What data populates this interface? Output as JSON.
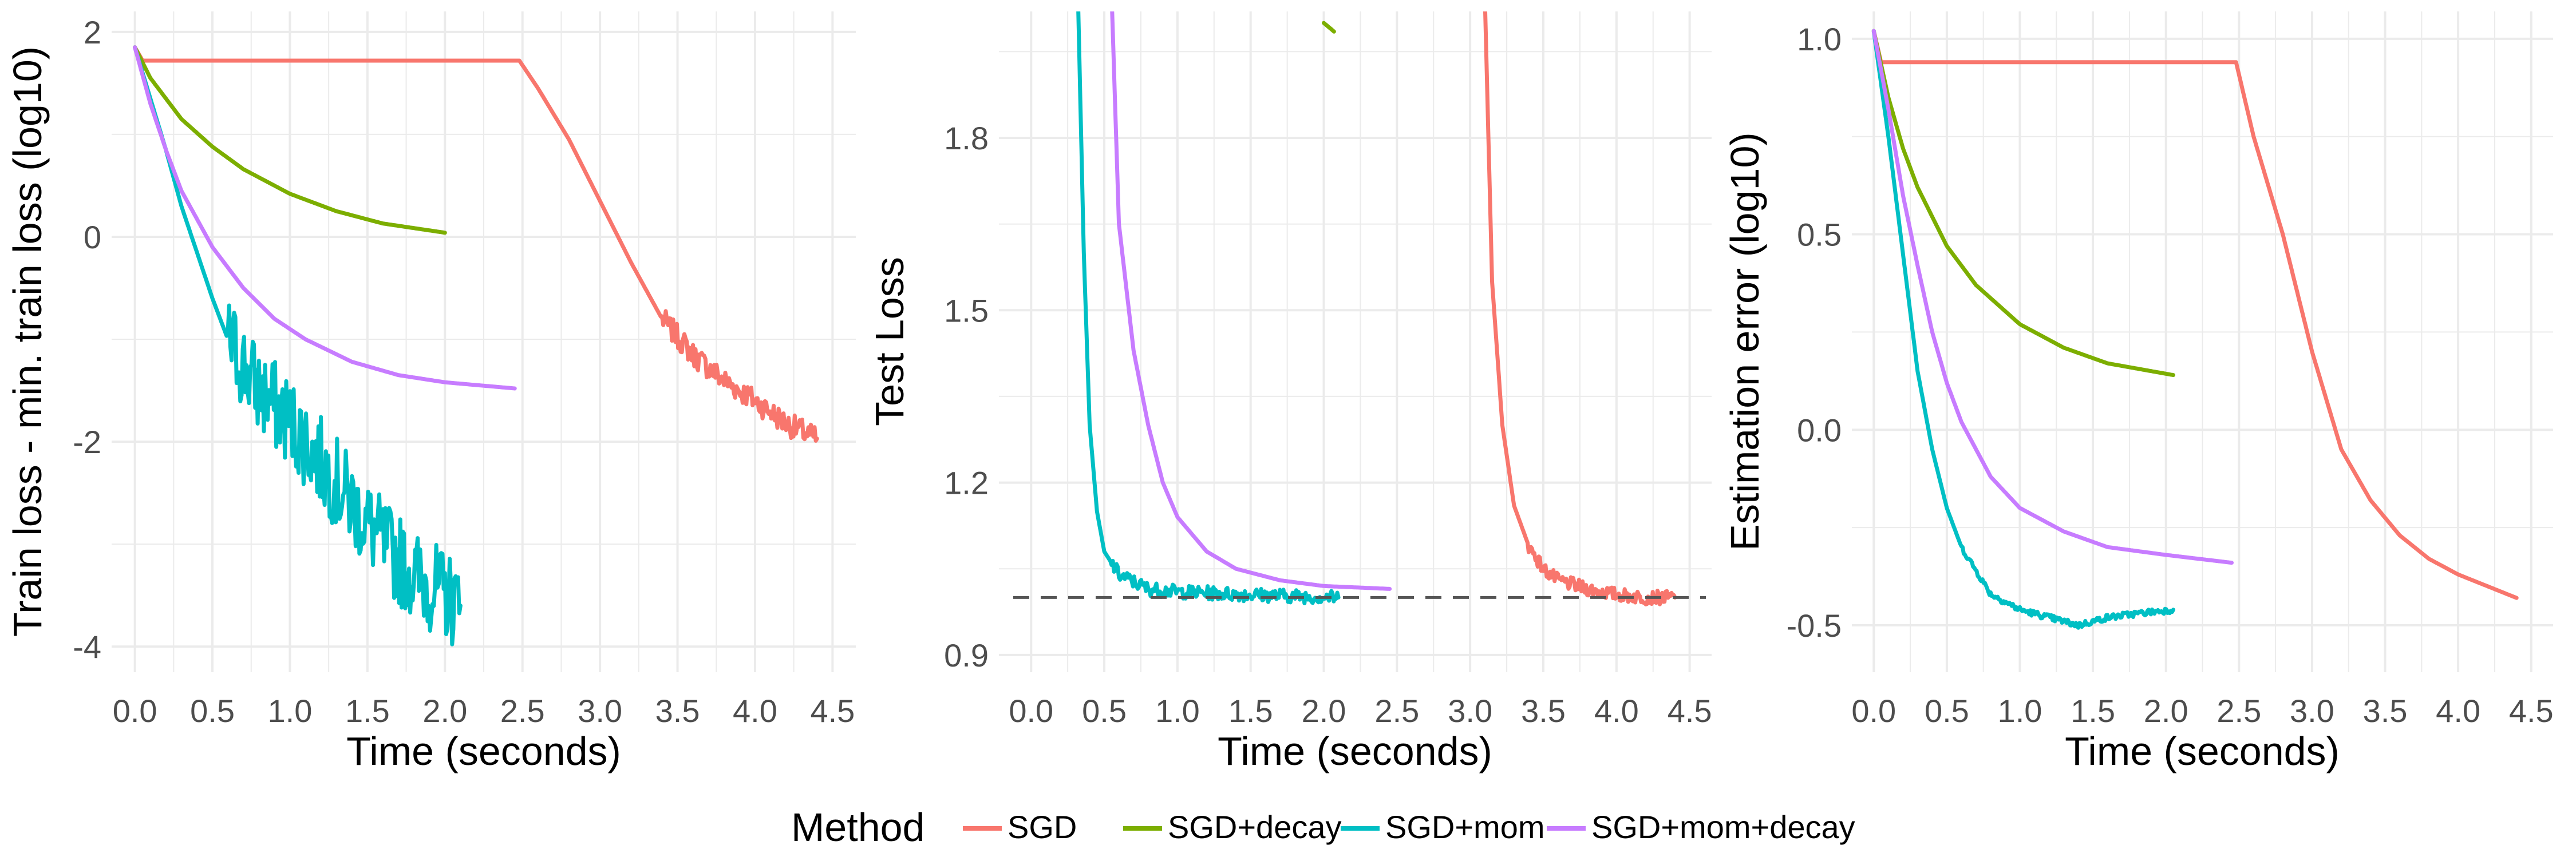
{
  "colors": {
    "SGD": "#F8766D",
    "SGD+decay": "#7CAE00",
    "SGD+mom": "#00BFC4",
    "SGD+mom+decay": "#C77CFF",
    "grid": "#EBEBEB",
    "reference_line": "#555555"
  },
  "legend": {
    "title": "Method",
    "entries": [
      "SGD",
      "SGD+decay",
      "SGD+mom",
      "SGD+mom+decay"
    ]
  },
  "chart_data": [
    {
      "type": "line",
      "xlabel": "Time (seconds)",
      "ylabel": "Train loss - min. train loss (log10)",
      "xlim": [
        -0.15,
        4.65
      ],
      "ylim": [
        -4.25,
        2.2
      ],
      "x_ticks": [
        0,
        0.5,
        1,
        1.5,
        2,
        2.5,
        3,
        3.5,
        4,
        4.5
      ],
      "x_tick_labels": [
        "0.0",
        "0.5",
        "1.0",
        "1.5",
        "2.0",
        "2.5",
        "3.0",
        "3.5",
        "4.0",
        "4.5"
      ],
      "y_ticks": [
        -4,
        -2,
        0,
        2
      ],
      "y_tick_labels": [
        "-4",
        "-2",
        "0",
        "2"
      ],
      "grid": true,
      "series": [
        {
          "name": "SGD",
          "noise": 0.12,
          "noise_from": 3.4,
          "x": [
            0,
            0.05,
            2.48,
            2.6,
            2.8,
            3.0,
            3.2,
            3.4,
            3.6,
            3.8,
            4.0,
            4.2,
            4.4
          ],
          "y": [
            1.85,
            1.72,
            1.72,
            1.45,
            0.95,
            0.35,
            -0.25,
            -0.8,
            -1.15,
            -1.4,
            -1.6,
            -1.82,
            -1.97
          ]
        },
        {
          "name": "SGD+decay",
          "x": [
            0,
            0.1,
            0.2,
            0.3,
            0.5,
            0.7,
            1.0,
            1.3,
            1.6,
            2.0
          ],
          "y": [
            1.85,
            1.55,
            1.35,
            1.15,
            0.88,
            0.66,
            0.42,
            0.25,
            0.13,
            0.04
          ]
        },
        {
          "name": "SGD+mom",
          "noise": 0.45,
          "noise_from": 0.6,
          "x": [
            0,
            0.1,
            0.2,
            0.3,
            0.4,
            0.5,
            0.6,
            0.8,
            1.0,
            1.2,
            1.4,
            1.6,
            1.8,
            2.0,
            2.1
          ],
          "y": [
            1.85,
            1.35,
            0.85,
            0.3,
            -0.15,
            -0.6,
            -1.0,
            -1.5,
            -1.8,
            -2.2,
            -2.6,
            -3.0,
            -3.3,
            -3.5,
            -3.6
          ]
        },
        {
          "name": "SGD+mom+decay",
          "x": [
            0,
            0.1,
            0.2,
            0.3,
            0.5,
            0.7,
            0.9,
            1.1,
            1.4,
            1.7,
            2.0,
            2.45
          ],
          "y": [
            1.85,
            1.3,
            0.85,
            0.45,
            -0.1,
            -0.5,
            -0.8,
            -1.0,
            -1.22,
            -1.35,
            -1.42,
            -1.48
          ]
        }
      ]
    },
    {
      "type": "line",
      "xlabel": "Time (seconds)",
      "ylabel": "Test Loss",
      "xlim": [
        -0.22,
        4.65
      ],
      "ylim": [
        0.87,
        2.02
      ],
      "x_ticks": [
        0,
        0.5,
        1,
        1.5,
        2,
        2.5,
        3,
        3.5,
        4,
        4.5
      ],
      "x_tick_labels": [
        "0.0",
        "0.5",
        "1.0",
        "1.5",
        "2.0",
        "2.5",
        "3.0",
        "3.5",
        "4.0",
        "4.5"
      ],
      "y_ticks": [
        0.9,
        1.2,
        1.5,
        1.8
      ],
      "y_tick_labels": [
        "0.9",
        "1.2",
        "1.5",
        "1.8"
      ],
      "grid": true,
      "reference_line": {
        "y": 1.0,
        "style": "dashed"
      },
      "series": [
        {
          "name": "SGD",
          "noise": 0.012,
          "noise_from": 3.4,
          "x": [
            3.1,
            3.15,
            3.22,
            3.3,
            3.4,
            3.5,
            3.6,
            3.8,
            4.0,
            4.2,
            4.4
          ],
          "y": [
            2.05,
            1.55,
            1.3,
            1.16,
            1.09,
            1.05,
            1.03,
            1.015,
            1.005,
            1.0,
            1.0
          ]
        },
        {
          "name": "SGD+decay",
          "x": [
            2.0,
            2.07
          ],
          "y": [
            2.0,
            1.985
          ]
        },
        {
          "name": "SGD+mom",
          "noise": 0.012,
          "noise_from": 0.55,
          "x": [
            0.32,
            0.36,
            0.4,
            0.45,
            0.5,
            0.6,
            0.8,
            1.0,
            1.5,
            2.1
          ],
          "y": [
            2.05,
            1.6,
            1.3,
            1.15,
            1.08,
            1.04,
            1.015,
            1.01,
            1.005,
            1.0
          ]
        },
        {
          "name": "SGD+mom+decay",
          "x": [
            0.55,
            0.6,
            0.7,
            0.8,
            0.9,
            1.0,
            1.2,
            1.4,
            1.7,
            2.0,
            2.45
          ],
          "y": [
            2.05,
            1.65,
            1.43,
            1.3,
            1.2,
            1.14,
            1.08,
            1.05,
            1.03,
            1.02,
            1.015
          ]
        }
      ]
    },
    {
      "type": "line",
      "xlabel": "Time (seconds)",
      "ylabel": "Estimation error (log10)",
      "xlim": [
        -0.15,
        4.65
      ],
      "ylim": [
        -0.62,
        1.07
      ],
      "x_ticks": [
        0,
        0.5,
        1,
        1.5,
        2,
        2.5,
        3,
        3.5,
        4,
        4.5
      ],
      "x_tick_labels": [
        "0.0",
        "0.5",
        "1.0",
        "1.5",
        "2.0",
        "2.5",
        "3.0",
        "3.5",
        "4.0",
        "4.5"
      ],
      "y_ticks": [
        -0.5,
        0,
        0.5,
        1
      ],
      "y_tick_labels": [
        "-0.5",
        "0.0",
        "0.5",
        "1.0"
      ],
      "grid": true,
      "series": [
        {
          "name": "SGD",
          "x": [
            0,
            0.05,
            2.48,
            2.6,
            2.8,
            3.0,
            3.2,
            3.4,
            3.6,
            3.8,
            4.0,
            4.2,
            4.4
          ],
          "y": [
            1.02,
            0.94,
            0.94,
            0.75,
            0.5,
            0.2,
            -0.05,
            -0.18,
            -0.27,
            -0.33,
            -0.37,
            -0.4,
            -0.43
          ]
        },
        {
          "name": "SGD+decay",
          "x": [
            0,
            0.1,
            0.2,
            0.3,
            0.5,
            0.7,
            1.0,
            1.3,
            1.6,
            2.05
          ],
          "y": [
            1.02,
            0.85,
            0.72,
            0.62,
            0.47,
            0.37,
            0.27,
            0.21,
            0.17,
            0.14
          ]
        },
        {
          "name": "SGD+mom",
          "noise": 0.008,
          "noise_from": 0.6,
          "x": [
            0,
            0.1,
            0.2,
            0.3,
            0.4,
            0.5,
            0.6,
            0.8,
            1.0,
            1.2,
            1.4,
            1.6,
            1.8,
            2.05
          ],
          "y": [
            1.02,
            0.75,
            0.45,
            0.15,
            -0.05,
            -0.2,
            -0.3,
            -0.42,
            -0.46,
            -0.48,
            -0.5,
            -0.48,
            -0.47,
            -0.46
          ]
        },
        {
          "name": "SGD+mom+decay",
          "x": [
            0,
            0.1,
            0.2,
            0.3,
            0.4,
            0.5,
            0.6,
            0.8,
            1.0,
            1.3,
            1.6,
            2.0,
            2.45
          ],
          "y": [
            1.02,
            0.82,
            0.6,
            0.42,
            0.25,
            0.12,
            0.02,
            -0.12,
            -0.2,
            -0.26,
            -0.3,
            -0.32,
            -0.34
          ]
        }
      ]
    }
  ]
}
